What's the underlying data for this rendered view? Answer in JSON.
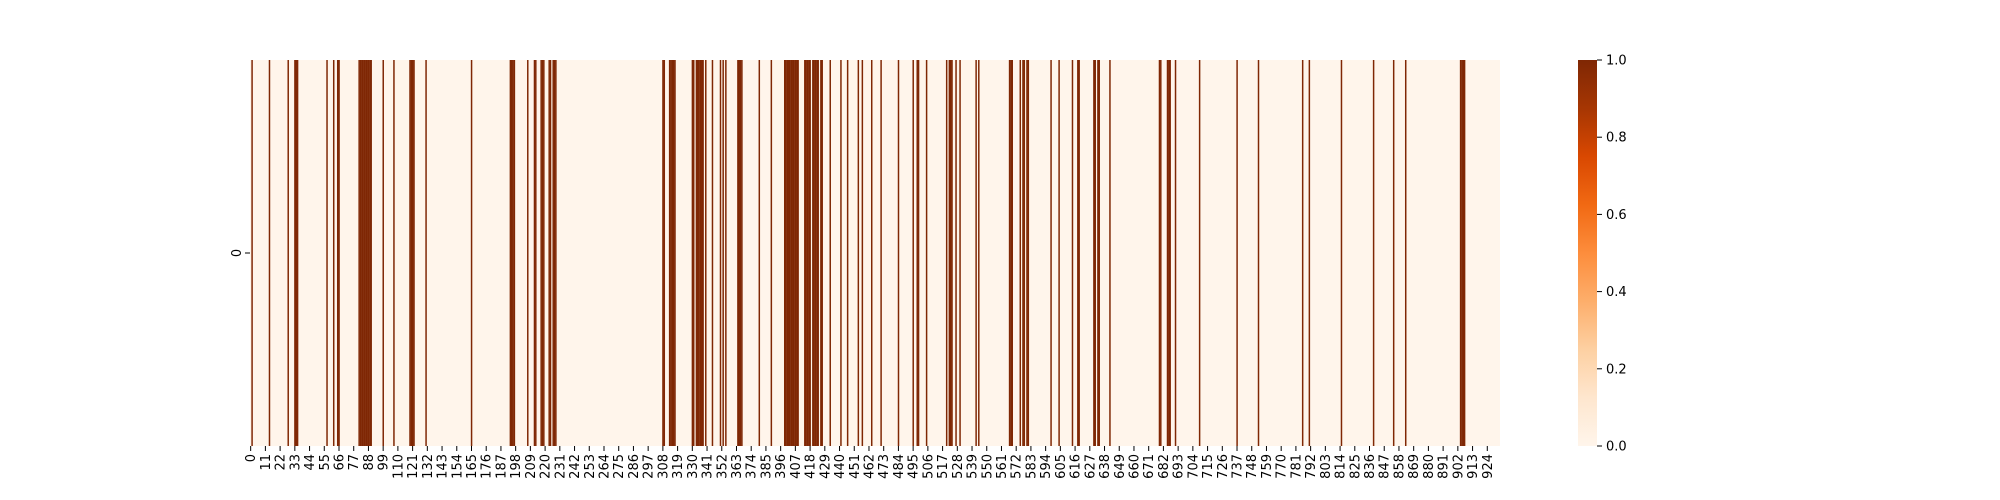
{
  "chart_data": {
    "type": "heatmap",
    "title": "",
    "xlabel": "",
    "ylabel": "",
    "rows": [
      "0"
    ],
    "n_columns": 934,
    "x_tick_step": 11,
    "x_tick_labels": [
      "0",
      "11",
      "22",
      "33",
      "44",
      "55",
      "66",
      "77",
      "88",
      "99",
      "110",
      "121",
      "132",
      "143",
      "154",
      "165",
      "176",
      "187",
      "198",
      "209",
      "220",
      "231",
      "242",
      "253",
      "264",
      "275",
      "286",
      "297",
      "308",
      "319",
      "330",
      "341",
      "352",
      "363",
      "374",
      "385",
      "396",
      "407",
      "418",
      "429",
      "440",
      "451",
      "462",
      "473",
      "484",
      "495",
      "506",
      "517",
      "528",
      "539",
      "550",
      "561",
      "572",
      "583",
      "594",
      "605",
      "616",
      "627",
      "638",
      "649",
      "660",
      "671",
      "682",
      "693",
      "704",
      "715",
      "726",
      "737",
      "748",
      "759",
      "770",
      "781",
      "792",
      "803",
      "814",
      "825",
      "836",
      "847",
      "858",
      "869",
      "880",
      "891",
      "902",
      "913",
      "924"
    ],
    "value_range": [
      0,
      1
    ],
    "cmap": "Oranges",
    "low_color": "#fff5eb",
    "high_color": "#7f2704",
    "colorbar_ticks": [
      "0.0",
      "0.2",
      "0.4",
      "0.6",
      "0.8",
      "1.0"
    ],
    "active_columns": [
      1,
      14,
      28,
      33,
      34,
      35,
      57,
      62,
      65,
      66,
      81,
      82,
      83,
      84,
      85,
      86,
      87,
      88,
      89,
      90,
      99,
      107,
      119,
      120,
      121,
      122,
      131,
      165,
      194,
      195,
      196,
      197,
      207,
      212,
      213,
      217,
      218,
      219,
      223,
      224,
      226,
      227,
      228,
      308,
      309,
      313,
      314,
      315,
      316,
      317,
      330,
      331,
      333,
      334,
      335,
      336,
      337,
      338,
      340,
      345,
      351,
      353,
      355,
      364,
      365,
      366,
      367,
      380,
      389,
      399,
      400,
      401,
      402,
      403,
      404,
      405,
      406,
      407,
      408,
      409,
      414,
      415,
      416,
      417,
      418,
      420,
      421,
      422,
      423,
      424,
      426,
      427,
      433,
      441,
      446,
      454,
      457,
      464,
      471,
      484,
      495,
      498,
      499,
      505,
      520,
      522,
      523,
      524,
      527,
      530,
      542,
      544,
      567,
      568,
      569,
      575,
      577,
      578,
      580,
      581,
      598,
      604,
      614,
      618,
      619,
      630,
      631,
      633,
      634,
      642,
      679,
      680,
      685,
      686,
      687,
      691,
      709,
      737,
      753,
      786,
      791,
      815,
      839,
      854,
      863,
      904,
      905,
      906,
      907
    ]
  }
}
